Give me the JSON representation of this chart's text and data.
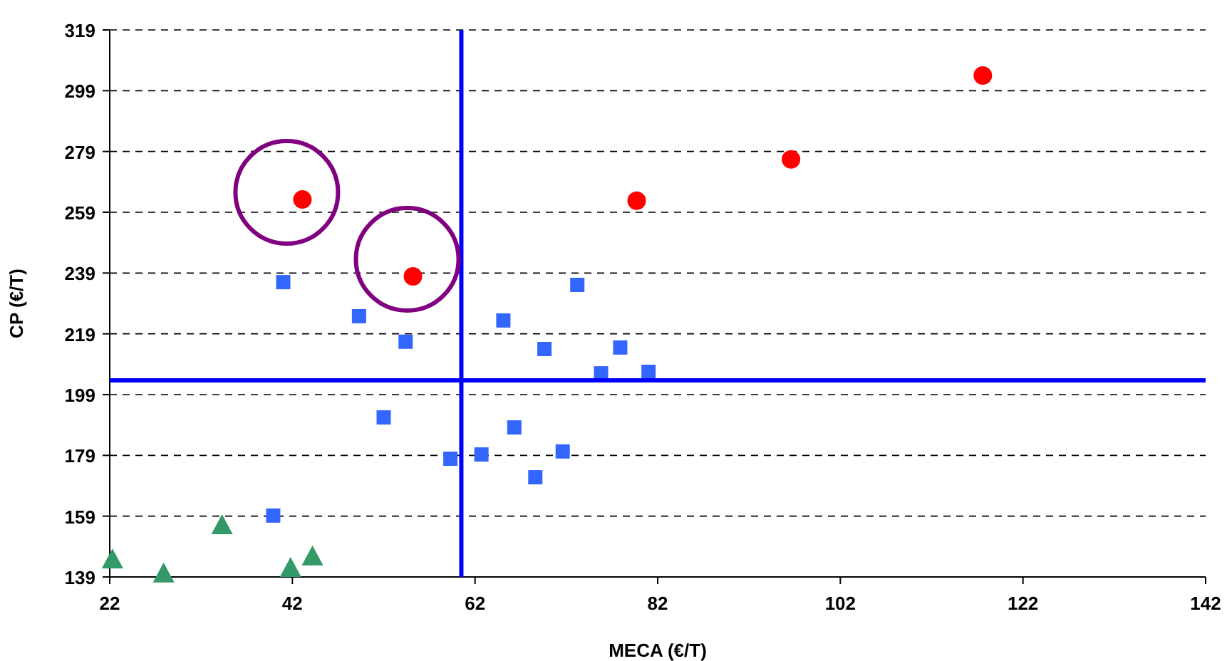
{
  "chart_data": {
    "type": "scatter",
    "xlabel": "MECA (€/T)",
    "ylabel": "CP (€/T)",
    "xlim": [
      22,
      142
    ],
    "xticks": [
      22,
      42,
      62,
      82,
      102,
      122,
      142
    ],
    "ylim": [
      139,
      319
    ],
    "yticks": [
      139,
      159,
      179,
      199,
      219,
      239,
      259,
      279,
      299,
      319
    ],
    "grid": "y",
    "series": [
      {
        "color": "#ff0000",
        "marker": "circle",
        "x": [
          43.1,
          55.2,
          79.7,
          96.6,
          117.6
        ],
        "values": [
          263.2,
          237.9,
          262.8,
          276.4,
          304
        ]
      },
      {
        "color": "#3366ff",
        "marker": "square",
        "x": [
          41.0,
          49.3,
          54.4,
          52.0,
          59.3,
          62.7,
          65.1,
          66.3,
          69.6,
          68.6,
          71.6,
          73.2,
          75.8,
          77.9,
          81.0,
          39.9
        ],
        "values": [
          236,
          224.8,
          216.4,
          191.5,
          177.9,
          179.3,
          223.4,
          188.2,
          214,
          171.8,
          180.3,
          235.1,
          206,
          214.5,
          206.5,
          159.2
        ]
      },
      {
        "color": "#339966",
        "marker": "triangle",
        "x": [
          22.3,
          27.9,
          34.3,
          41.8,
          44.2
        ],
        "values": [
          144.6,
          140,
          155.9,
          141.8,
          145.6
        ]
      }
    ],
    "ref_lines": [
      {
        "axis": "x",
        "value": 60.5,
        "color": "#0000ff"
      },
      {
        "axis": "y",
        "value": 203.7,
        "color": "#0000ff"
      }
    ]
  }
}
